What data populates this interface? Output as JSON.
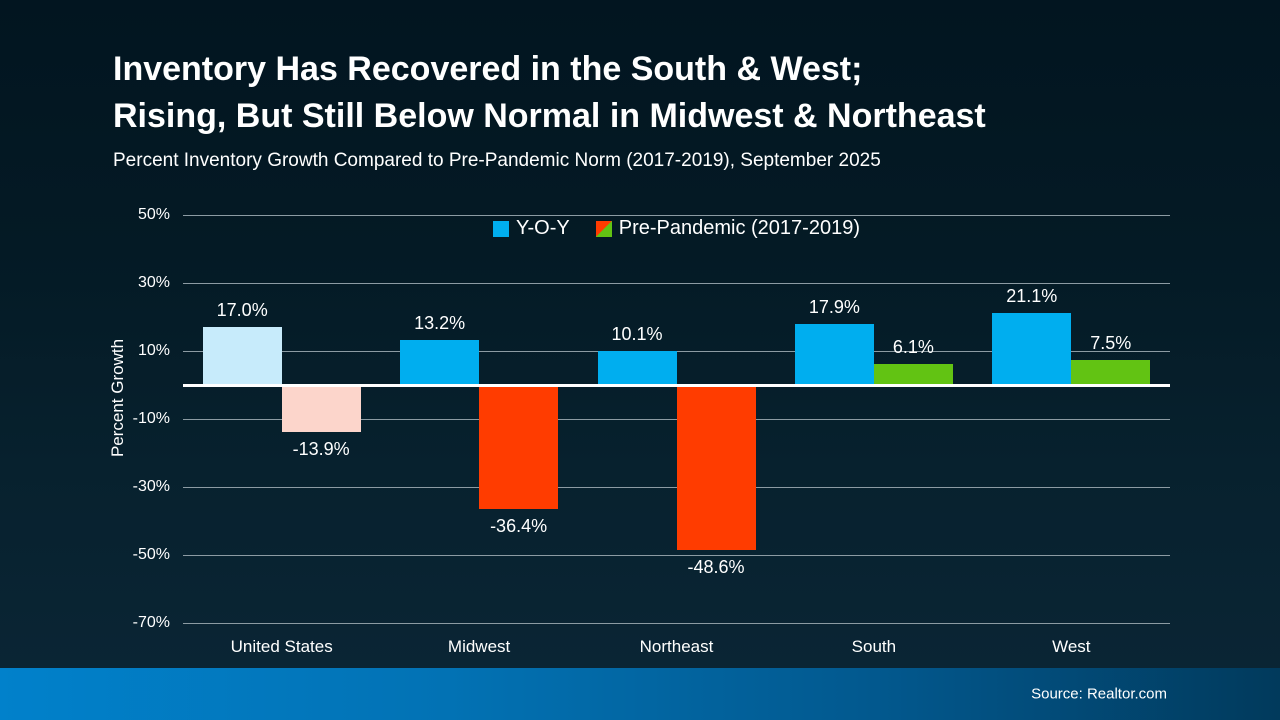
{
  "header": {
    "title_line1": "Inventory Has Recovered in the South & West;",
    "title_line2": "Rising, But Still Below Normal in Midwest & Northeast",
    "subtitle": "Percent Inventory Growth Compared to Pre-Pandemic Norm (2017-2019), September 2025"
  },
  "footer": {
    "source": "Source: Realtor.com"
  },
  "colors": {
    "background_top": "#021520",
    "background_bottom": "#0b2636",
    "footer_gradient_left": "#0181cb",
    "footer_gradient_right": "#013a5c",
    "gridline": "#8c9ba3",
    "zero_axis": "#ffffff",
    "text": "#ffffff",
    "yoy_blue": "#00aeef",
    "yoy_light_blue": "#c7ebfb",
    "prepandemic_red": "#ff3c00",
    "prepandemic_light_pink": "#fcd5cb",
    "prepandemic_green": "#62c313"
  },
  "chart_data": {
    "type": "bar",
    "title": "Inventory Has Recovered in the South & West; Rising, But Still Below Normal in Midwest & Northeast",
    "subtitle": "Percent Inventory Growth Compared to Pre-Pandemic Norm (2017-2019), September 2025",
    "categories": [
      "United States",
      "Midwest",
      "Northeast",
      "South",
      "West"
    ],
    "series": [
      {
        "name": "Y-O-Y",
        "values": [
          17.0,
          13.2,
          10.1,
          17.9,
          21.1
        ],
        "labels": [
          "17.0%",
          "13.2%",
          "10.1%",
          "17.9%",
          "21.1%"
        ],
        "bar_colors": [
          "#c7ebfb",
          "#00aeef",
          "#00aeef",
          "#00aeef",
          "#00aeef"
        ],
        "legend_swatch": [
          "#00aeef"
        ]
      },
      {
        "name": "Pre-Pandemic (2017-2019)",
        "values": [
          -13.9,
          -36.4,
          -48.6,
          6.1,
          7.5
        ],
        "labels": [
          "-13.9%",
          "-36.4%",
          "-48.6%",
          "6.1%",
          "7.5%"
        ],
        "bar_colors": [
          "#fcd5cb",
          "#ff3c00",
          "#ff3c00",
          "#62c313",
          "#62c313"
        ],
        "legend_swatch": [
          "#ff3c00",
          "#62c313"
        ]
      }
    ],
    "ylabel": "Percent Growth",
    "xlabel": "",
    "yticks": [
      "50%",
      "30%",
      "10%",
      "-10%",
      "-30%",
      "-50%",
      "-70%"
    ],
    "ylim": [
      -70,
      50
    ],
    "grid": true,
    "legend_position": "top-center",
    "source": "Source: Realtor.com"
  }
}
